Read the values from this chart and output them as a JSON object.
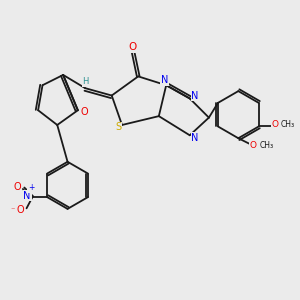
{
  "background_color": "#ebebeb",
  "figsize": [
    3.0,
    3.0
  ],
  "dpi": 100,
  "colors": {
    "C": "#1a1a1a",
    "N": "#0000ee",
    "O": "#ee0000",
    "S": "#ccaa00",
    "H": "#2a9090",
    "bond": "#1a1a1a"
  },
  "lw": 1.3
}
